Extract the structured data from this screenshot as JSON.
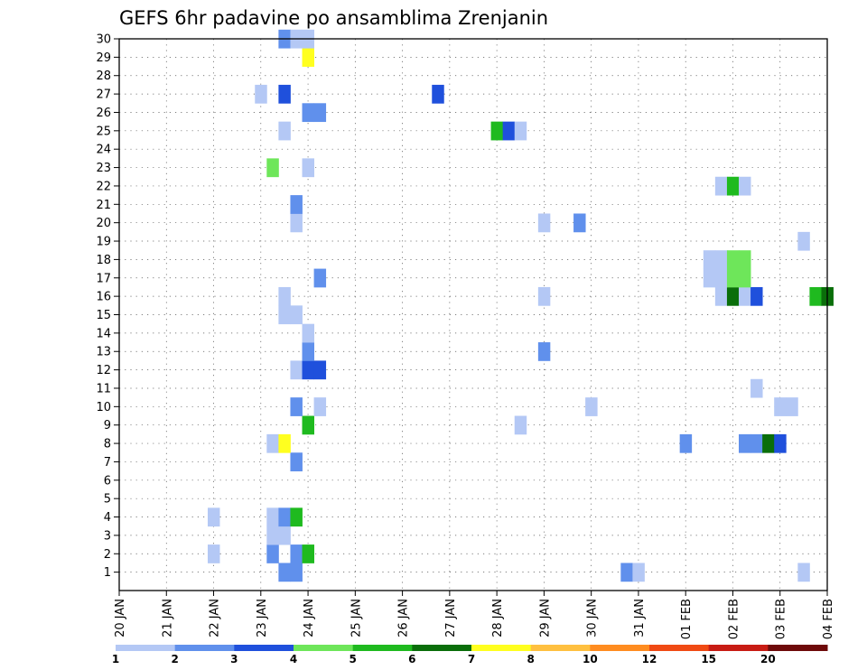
{
  "chart_data": {
    "type": "heatmap",
    "title": "GEFS 6hr padavine po ansamblima Zrenjanin",
    "xlabel": "",
    "ylabel": "",
    "x_ticks": [
      "20 JAN",
      "21 JAN",
      "22 JAN",
      "23 JAN",
      "24 JAN",
      "25 JAN",
      "26 JAN",
      "27 JAN",
      "28 JAN",
      "29 JAN",
      "30 JAN",
      "31 JAN",
      "01 FEB",
      "02 FEB",
      "03 FEB",
      "04 FEB"
    ],
    "x_unit": "6-hour step (4 steps per day, step 0 = 20 JAN 00Z)",
    "xlim": [
      0,
      60
    ],
    "y_ticks": [
      1,
      2,
      3,
      4,
      5,
      6,
      7,
      8,
      9,
      10,
      11,
      12,
      13,
      14,
      15,
      16,
      17,
      18,
      19,
      20,
      21,
      22,
      23,
      24,
      25,
      26,
      27,
      28,
      29,
      30
    ],
    "ylim": [
      0,
      30
    ],
    "grid": "dotted",
    "legend": {
      "placement": "bottom",
      "labels": [
        "1",
        "2",
        "3",
        "4",
        "5",
        "6",
        "7",
        "8",
        "10",
        "12",
        "15",
        "20"
      ],
      "colors": [
        "#b4c8f5",
        "#6090ec",
        "#1f50dc",
        "#6ee65a",
        "#1fba1f",
        "#0a6e0a",
        "#ffff1f",
        "#ffc040",
        "#ff8c20",
        "#f04a14",
        "#c81c14",
        "#6e0a0a"
      ]
    },
    "cells": [
      {
        "member": 1,
        "step": 14,
        "level": 2
      },
      {
        "member": 1,
        "step": 15,
        "level": 2
      },
      {
        "member": 1,
        "step": 43,
        "level": 2
      },
      {
        "member": 1,
        "step": 44,
        "level": 1
      },
      {
        "member": 1,
        "step": 58,
        "level": 1
      },
      {
        "member": 2,
        "step": 8,
        "level": 1
      },
      {
        "member": 2,
        "step": 13,
        "level": 2
      },
      {
        "member": 2,
        "step": 15,
        "level": 2
      },
      {
        "member": 2,
        "step": 16,
        "level": 5
      },
      {
        "member": 3,
        "step": 13,
        "level": 1
      },
      {
        "member": 3,
        "step": 14,
        "level": 1
      },
      {
        "member": 4,
        "step": 8,
        "level": 1
      },
      {
        "member": 4,
        "step": 13,
        "level": 1
      },
      {
        "member": 4,
        "step": 14,
        "level": 2
      },
      {
        "member": 4,
        "step": 15,
        "level": 5
      },
      {
        "member": 7,
        "step": 15,
        "level": 2
      },
      {
        "member": 8,
        "step": 13,
        "level": 1
      },
      {
        "member": 8,
        "step": 14,
        "level": 7
      },
      {
        "member": 8,
        "step": 48,
        "level": 2
      },
      {
        "member": 8,
        "step": 53,
        "level": 2
      },
      {
        "member": 8,
        "step": 54,
        "level": 2
      },
      {
        "member": 8,
        "step": 55,
        "level": 6
      },
      {
        "member": 8,
        "step": 56,
        "level": 3
      },
      {
        "member": 9,
        "step": 16,
        "level": 5
      },
      {
        "member": 9,
        "step": 34,
        "level": 1
      },
      {
        "member": 10,
        "step": 15,
        "level": 2
      },
      {
        "member": 10,
        "step": 17,
        "level": 1
      },
      {
        "member": 10,
        "step": 40,
        "level": 1
      },
      {
        "member": 10,
        "step": 56,
        "level": 1
      },
      {
        "member": 10,
        "step": 57,
        "level": 1
      },
      {
        "member": 11,
        "step": 54,
        "level": 1
      },
      {
        "member": 12,
        "step": 15,
        "level": 1
      },
      {
        "member": 12,
        "step": 16,
        "level": 3
      },
      {
        "member": 12,
        "step": 17,
        "level": 3
      },
      {
        "member": 13,
        "step": 16,
        "level": 2
      },
      {
        "member": 13,
        "step": 36,
        "level": 2
      },
      {
        "member": 14,
        "step": 16,
        "level": 1
      },
      {
        "member": 15,
        "step": 14,
        "level": 1
      },
      {
        "member": 15,
        "step": 15,
        "level": 1
      },
      {
        "member": 16,
        "step": 14,
        "level": 1
      },
      {
        "member": 16,
        "step": 36,
        "level": 1
      },
      {
        "member": 16,
        "step": 51,
        "level": 1
      },
      {
        "member": 16,
        "step": 52,
        "level": 6
      },
      {
        "member": 16,
        "step": 53,
        "level": 1
      },
      {
        "member": 16,
        "step": 54,
        "level": 3
      },
      {
        "member": 16,
        "step": 59,
        "level": 5
      },
      {
        "member": 16,
        "step": 60,
        "level": 6
      },
      {
        "member": 17,
        "step": 17,
        "level": 2
      },
      {
        "member": 17,
        "step": 50,
        "level": 1
      },
      {
        "member": 17,
        "step": 51,
        "level": 1
      },
      {
        "member": 17,
        "step": 52,
        "level": 4
      },
      {
        "member": 17,
        "step": 53,
        "level": 4
      },
      {
        "member": 18,
        "step": 50,
        "level": 1
      },
      {
        "member": 18,
        "step": 51,
        "level": 1
      },
      {
        "member": 18,
        "step": 52,
        "level": 4
      },
      {
        "member": 18,
        "step": 53,
        "level": 4
      },
      {
        "member": 19,
        "step": 58,
        "level": 1
      },
      {
        "member": 20,
        "step": 15,
        "level": 1
      },
      {
        "member": 20,
        "step": 36,
        "level": 1
      },
      {
        "member": 20,
        "step": 39,
        "level": 2
      },
      {
        "member": 21,
        "step": 15,
        "level": 2
      },
      {
        "member": 22,
        "step": 51,
        "level": 1
      },
      {
        "member": 22,
        "step": 52,
        "level": 5
      },
      {
        "member": 22,
        "step": 53,
        "level": 1
      },
      {
        "member": 23,
        "step": 13,
        "level": 4
      },
      {
        "member": 23,
        "step": 16,
        "level": 1
      },
      {
        "member": 25,
        "step": 14,
        "level": 1
      },
      {
        "member": 25,
        "step": 32,
        "level": 5
      },
      {
        "member": 25,
        "step": 33,
        "level": 3
      },
      {
        "member": 25,
        "step": 34,
        "level": 1
      },
      {
        "member": 26,
        "step": 16,
        "level": 2
      },
      {
        "member": 26,
        "step": 17,
        "level": 2
      },
      {
        "member": 27,
        "step": 12,
        "level": 1
      },
      {
        "member": 27,
        "step": 14,
        "level": 3
      },
      {
        "member": 27,
        "step": 27,
        "level": 3
      },
      {
        "member": 29,
        "step": 16,
        "level": 7
      },
      {
        "member": 30,
        "step": 14,
        "level": 2
      },
      {
        "member": 30,
        "step": 15,
        "level": 1
      },
      {
        "member": 30,
        "step": 16,
        "level": 1
      }
    ]
  }
}
